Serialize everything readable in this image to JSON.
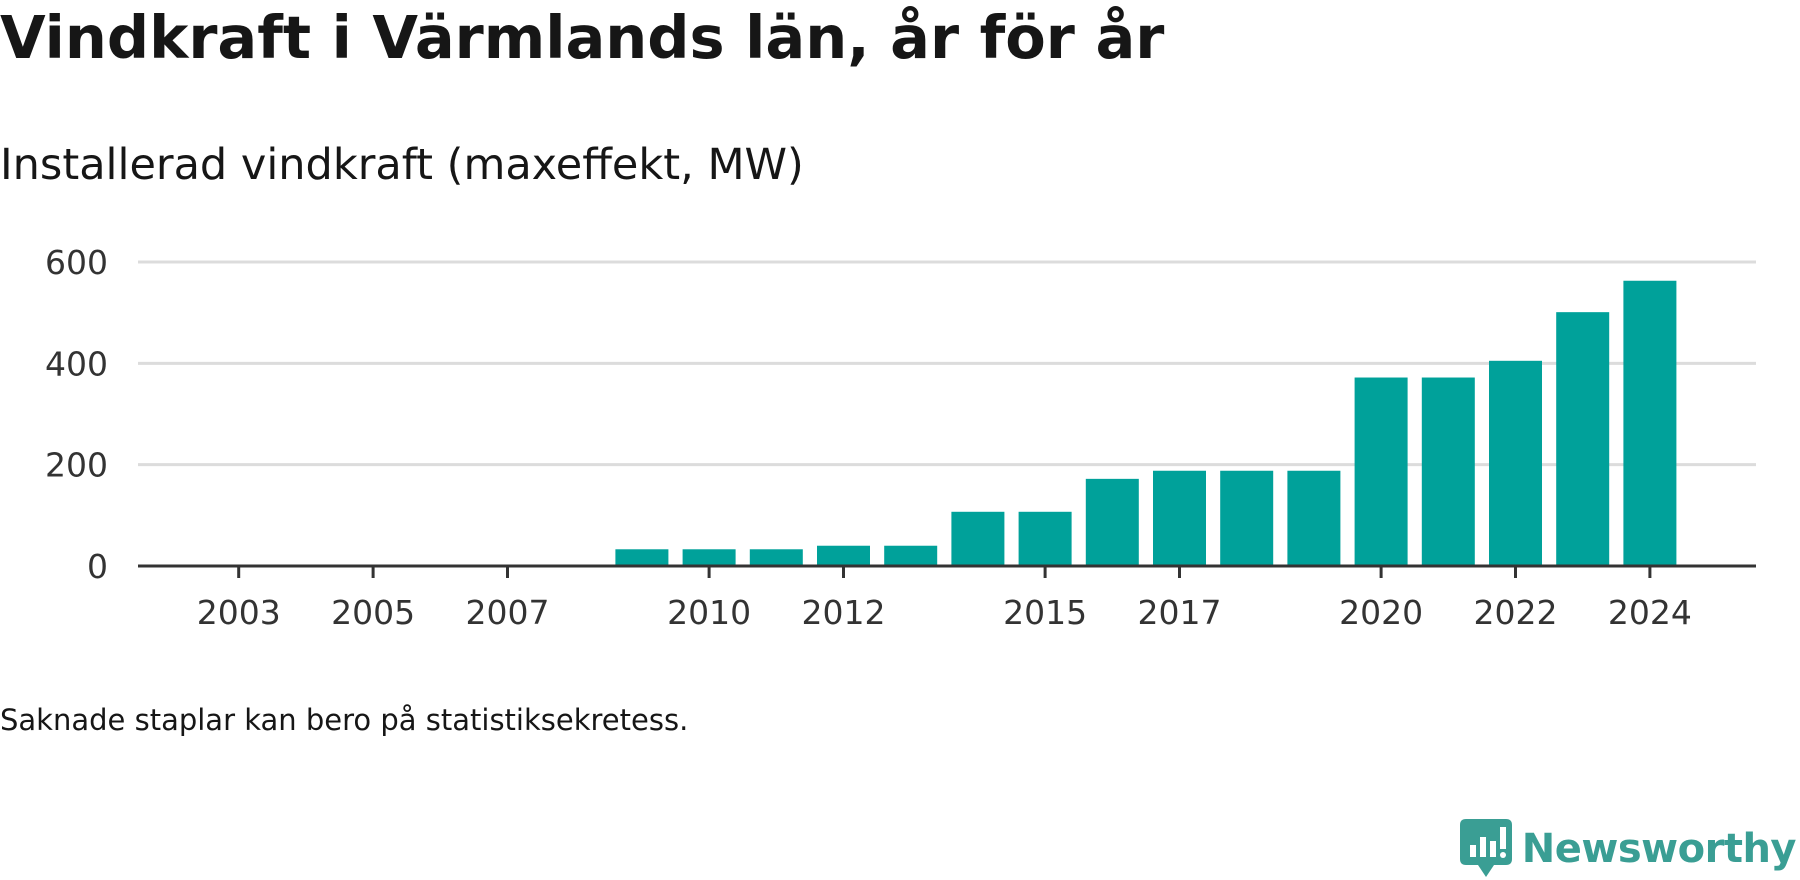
{
  "title": "Vindkraft i Värmlands län, år för år",
  "subtitle": "Installerad vindkraft (maxeffekt, MW)",
  "note": "Saknade staplar kan bero på statistiksekretess.",
  "brand": {
    "name": "Newsworthy",
    "icon": "newsworthy-logo-icon",
    "color": "#3a9e94"
  },
  "colors": {
    "bar": "#00a19a",
    "grid": "#dcdcdc",
    "axis": "#333333"
  },
  "chart_data": {
    "type": "bar",
    "title": "Vindkraft i Värmlands län, år för år",
    "subtitle": "Installerad vindkraft (maxeffekt, MW)",
    "xlabel": "",
    "ylabel": "",
    "categories": [
      2002,
      2003,
      2004,
      2005,
      2006,
      2007,
      2008,
      2009,
      2010,
      2011,
      2012,
      2013,
      2014,
      2015,
      2016,
      2017,
      2018,
      2019,
      2020,
      2021,
      2022,
      2023,
      2024
    ],
    "values": [
      null,
      null,
      null,
      null,
      null,
      null,
      null,
      33,
      33,
      33,
      40,
      40,
      107,
      107,
      172,
      188,
      188,
      188,
      372,
      372,
      405,
      501,
      563
    ],
    "x_tick_labels": [
      "2003",
      "2005",
      "2007",
      "2010",
      "2012",
      "2015",
      "2017",
      "2020",
      "2022",
      "2024"
    ],
    "y_ticks": [
      0,
      200,
      400,
      600
    ],
    "ylim": [
      0,
      600
    ],
    "grid": true,
    "legend": "none"
  }
}
